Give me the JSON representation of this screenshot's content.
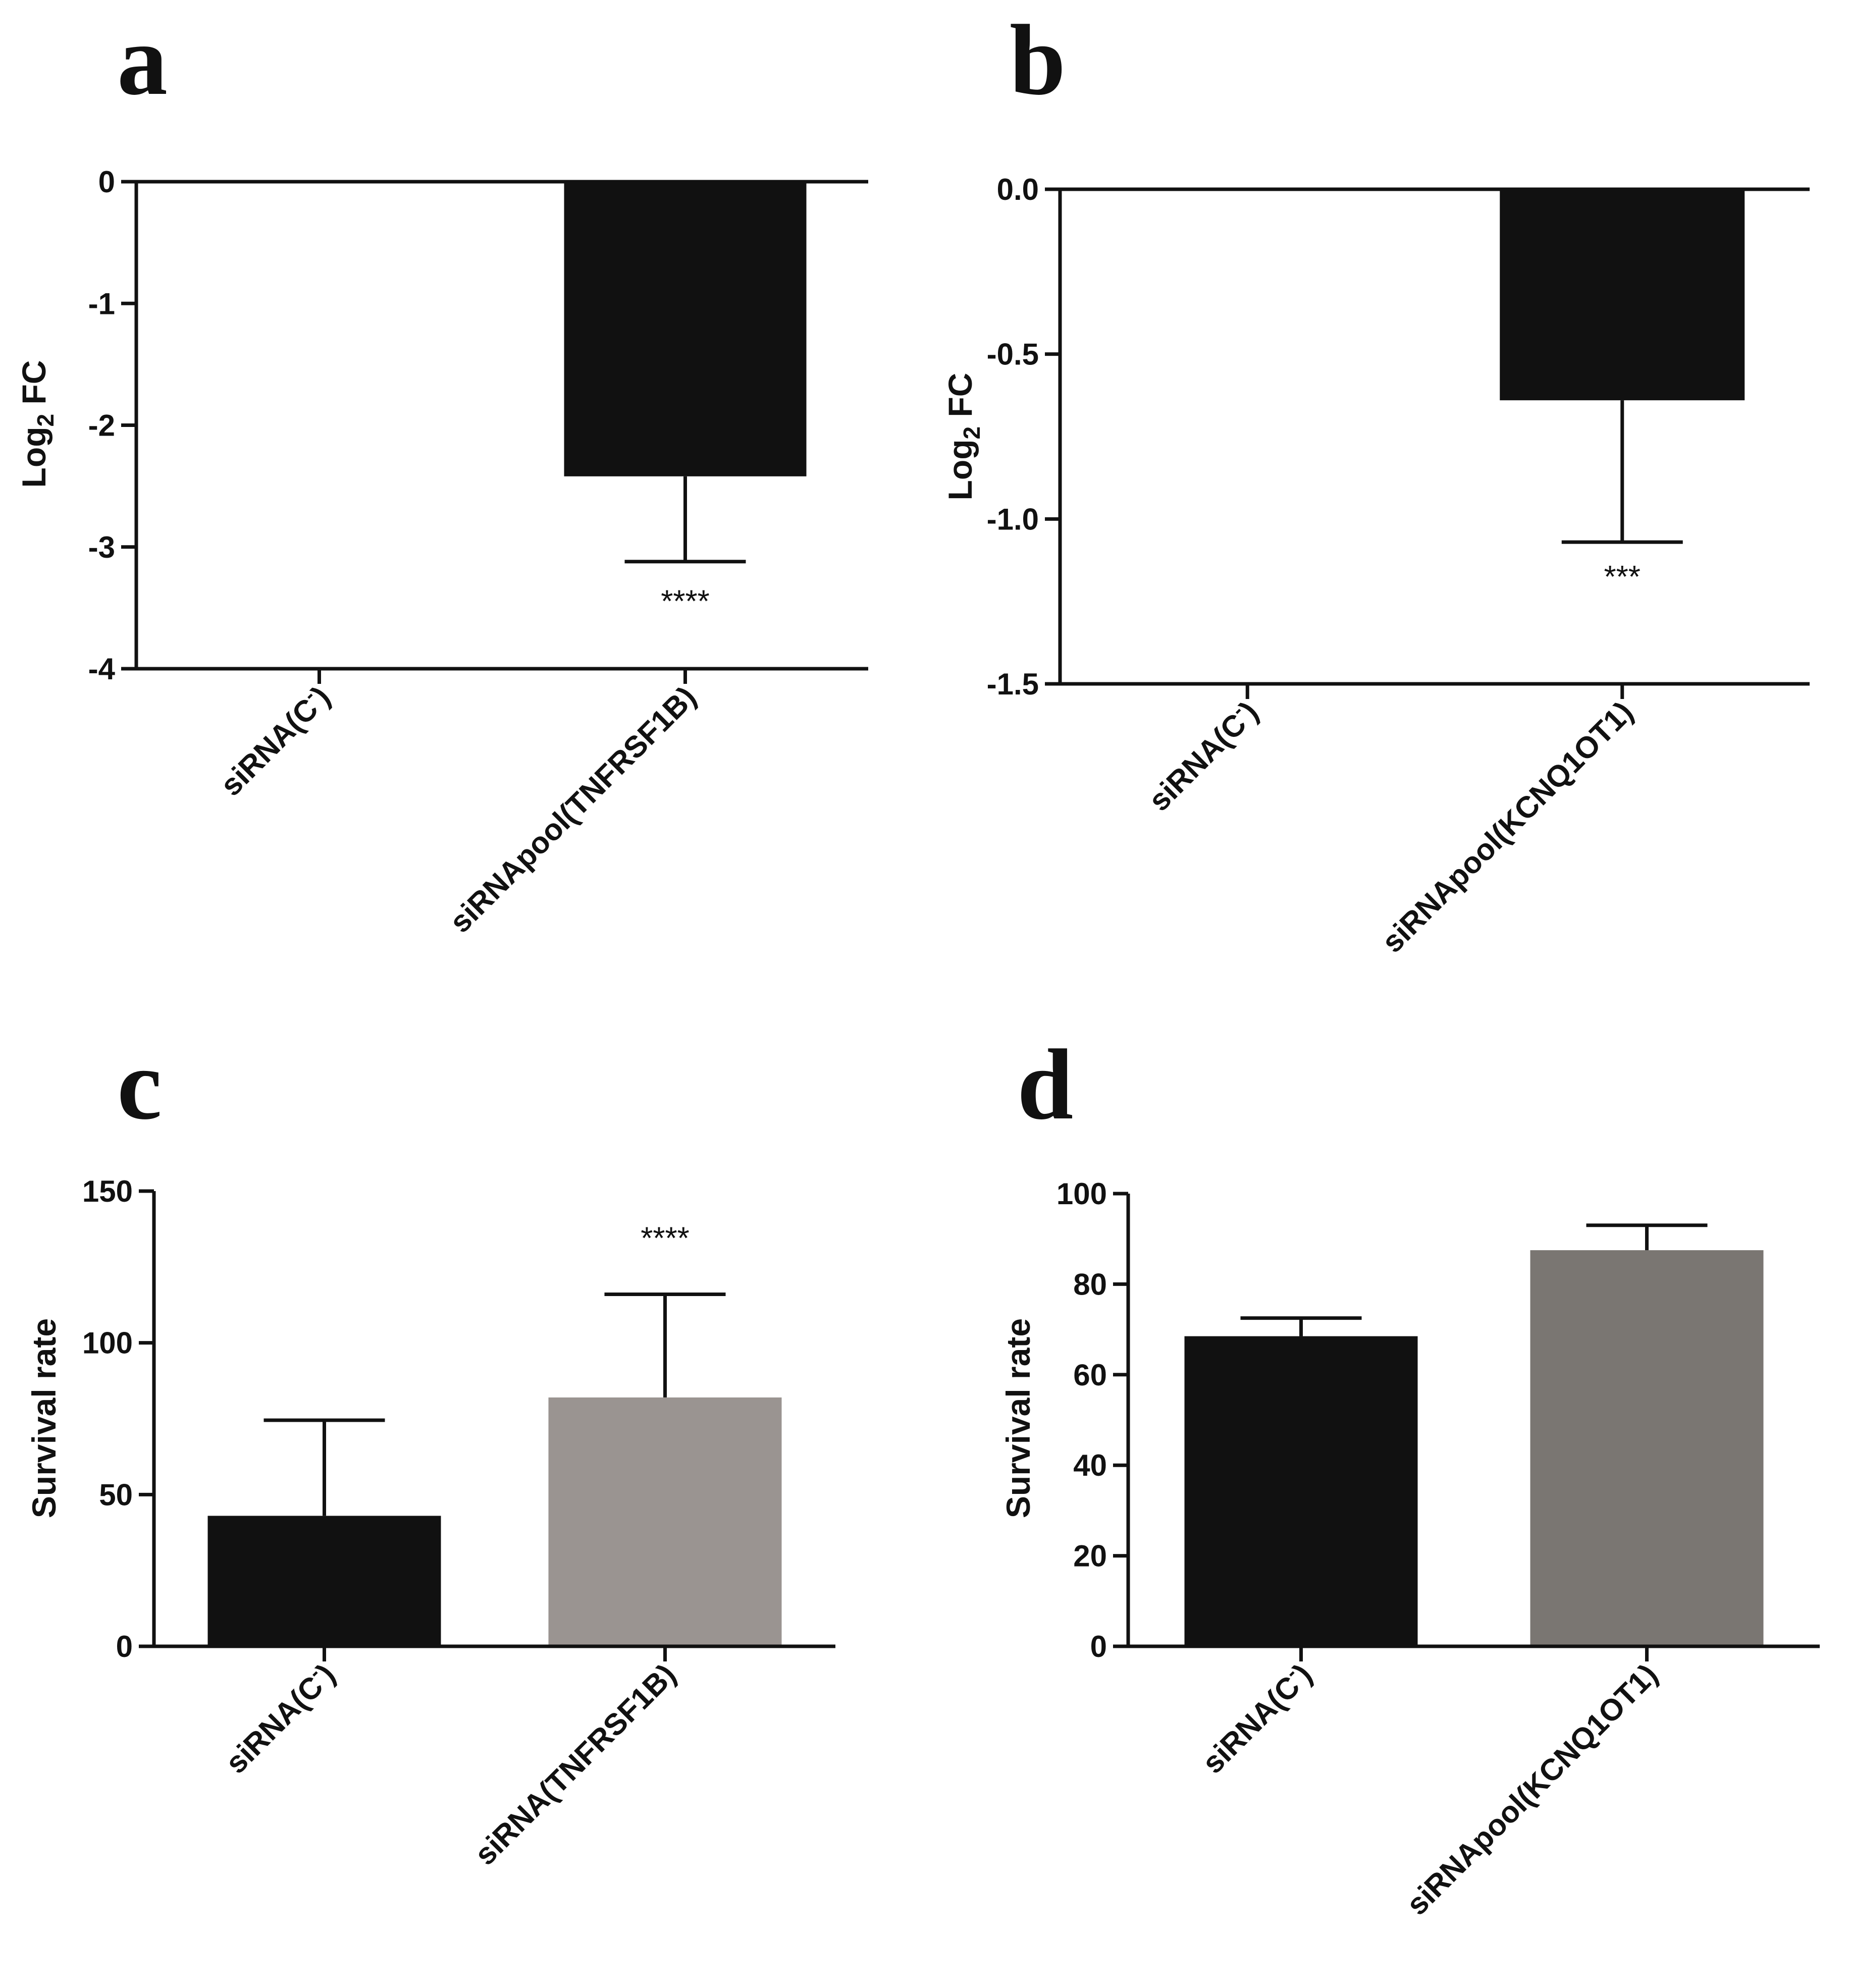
{
  "chart_data": [
    {
      "id": "a",
      "panel_label": "a",
      "type": "bar",
      "ylabel": "Log",
      "ylabel_sub": "2",
      "ylabel_tail": " FC",
      "ylim": [
        -4,
        0
      ],
      "yticks": [
        0,
        -1,
        -2,
        -3,
        -4
      ],
      "ytick_labels": [
        "0",
        "-1",
        "-2",
        "-3",
        "-4"
      ],
      "categories": [
        "siRNA(C",
        "siRNApool(TNFRSF1B)"
      ],
      "category_sups": [
        "-",
        ""
      ],
      "category_tails": [
        ")",
        ""
      ],
      "values": [
        0,
        -2.42
      ],
      "errors": [
        0,
        0.7
      ],
      "colors": [
        "#111111",
        "#111111"
      ],
      "significance": [
        "",
        "****"
      ]
    },
    {
      "id": "b",
      "panel_label": "b",
      "type": "bar",
      "ylabel": "Log",
      "ylabel_sub": "2",
      "ylabel_tail": " FC",
      "ylim": [
        -1.5,
        0
      ],
      "yticks": [
        0,
        -0.5,
        -1.0,
        -1.5
      ],
      "ytick_labels": [
        "0.0",
        "-0.5",
        "-1.0",
        "-1.5"
      ],
      "categories": [
        "siRNA(C",
        "siRNApool(KCNQ1OT1)"
      ],
      "category_sups": [
        "-",
        ""
      ],
      "category_tails": [
        ")",
        ""
      ],
      "values": [
        0,
        -0.64
      ],
      "errors": [
        0,
        0.43
      ],
      "colors": [
        "#111111",
        "#111111"
      ],
      "significance": [
        "",
        "***"
      ]
    },
    {
      "id": "c",
      "panel_label": "c",
      "type": "bar",
      "ylabel": "Survival rate",
      "ylabel_sub": "",
      "ylabel_tail": "",
      "ylim": [
        0,
        150
      ],
      "yticks": [
        0,
        50,
        100,
        150
      ],
      "ytick_labels": [
        "0",
        "50",
        "100",
        "150"
      ],
      "categories": [
        "siRNA(C",
        "siRNA(TNFRSF1B)"
      ],
      "category_sups": [
        "-",
        ""
      ],
      "category_tails": [
        ")",
        ""
      ],
      "values": [
        43,
        82
      ],
      "errors": [
        31.5,
        34
      ],
      "colors": [
        "#111111",
        "#9a9491"
      ],
      "significance": [
        "",
        "****"
      ]
    },
    {
      "id": "d",
      "panel_label": "d",
      "type": "bar",
      "ylabel": "Survival rate",
      "ylabel_sub": "",
      "ylabel_tail": "",
      "ylim": [
        0,
        100
      ],
      "yticks": [
        0,
        20,
        40,
        60,
        80,
        100
      ],
      "ytick_labels": [
        "0",
        "20",
        "40",
        "60",
        "80",
        "100"
      ],
      "categories": [
        "siRNA(C",
        "siRNApool(KCNQ1OT1)"
      ],
      "category_sups": [
        "-",
        ""
      ],
      "category_tails": [
        ")",
        ""
      ],
      "values": [
        68.5,
        87.5
      ],
      "errors": [
        4,
        5.5
      ],
      "colors": [
        "#111111",
        "#7a7672"
      ],
      "significance": [
        "",
        ""
      ]
    }
  ]
}
